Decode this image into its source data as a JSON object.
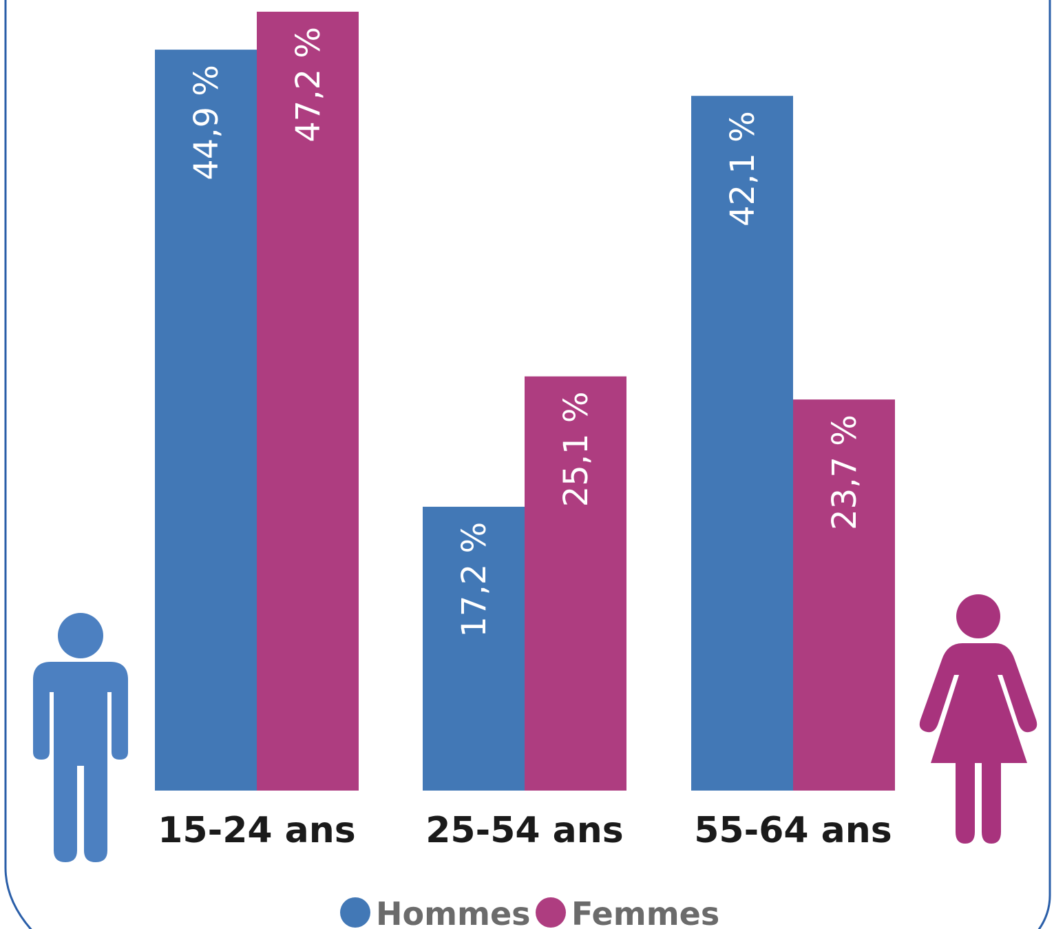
{
  "chart_data": {
    "type": "bar",
    "title": "",
    "xlabel": "",
    "ylabel": "",
    "categories": [
      "15-24 ans",
      "25-54 ans",
      "55-64 ans"
    ],
    "series": [
      {
        "name": "Hommes",
        "color": "#4278b6",
        "values": [
          44.9,
          17.2,
          42.1
        ],
        "labels": [
          "44,9 %",
          "17,2 %",
          "42,1 %"
        ]
      },
      {
        "name": "Femmes",
        "color": "#ae3d80",
        "values": [
          47.2,
          25.1,
          23.7
        ],
        "labels": [
          "47,2 %",
          "25,1 %",
          "23,7 %"
        ]
      }
    ],
    "ylim": [
      0,
      47.2
    ],
    "grid": false,
    "legend_position": "bottom"
  },
  "icons": {
    "man": {
      "name": "man-icon",
      "color": "#4c80c1"
    },
    "woman": {
      "name": "woman-icon",
      "color": "#a8337d"
    }
  },
  "frame_color": "#2a5ea8"
}
